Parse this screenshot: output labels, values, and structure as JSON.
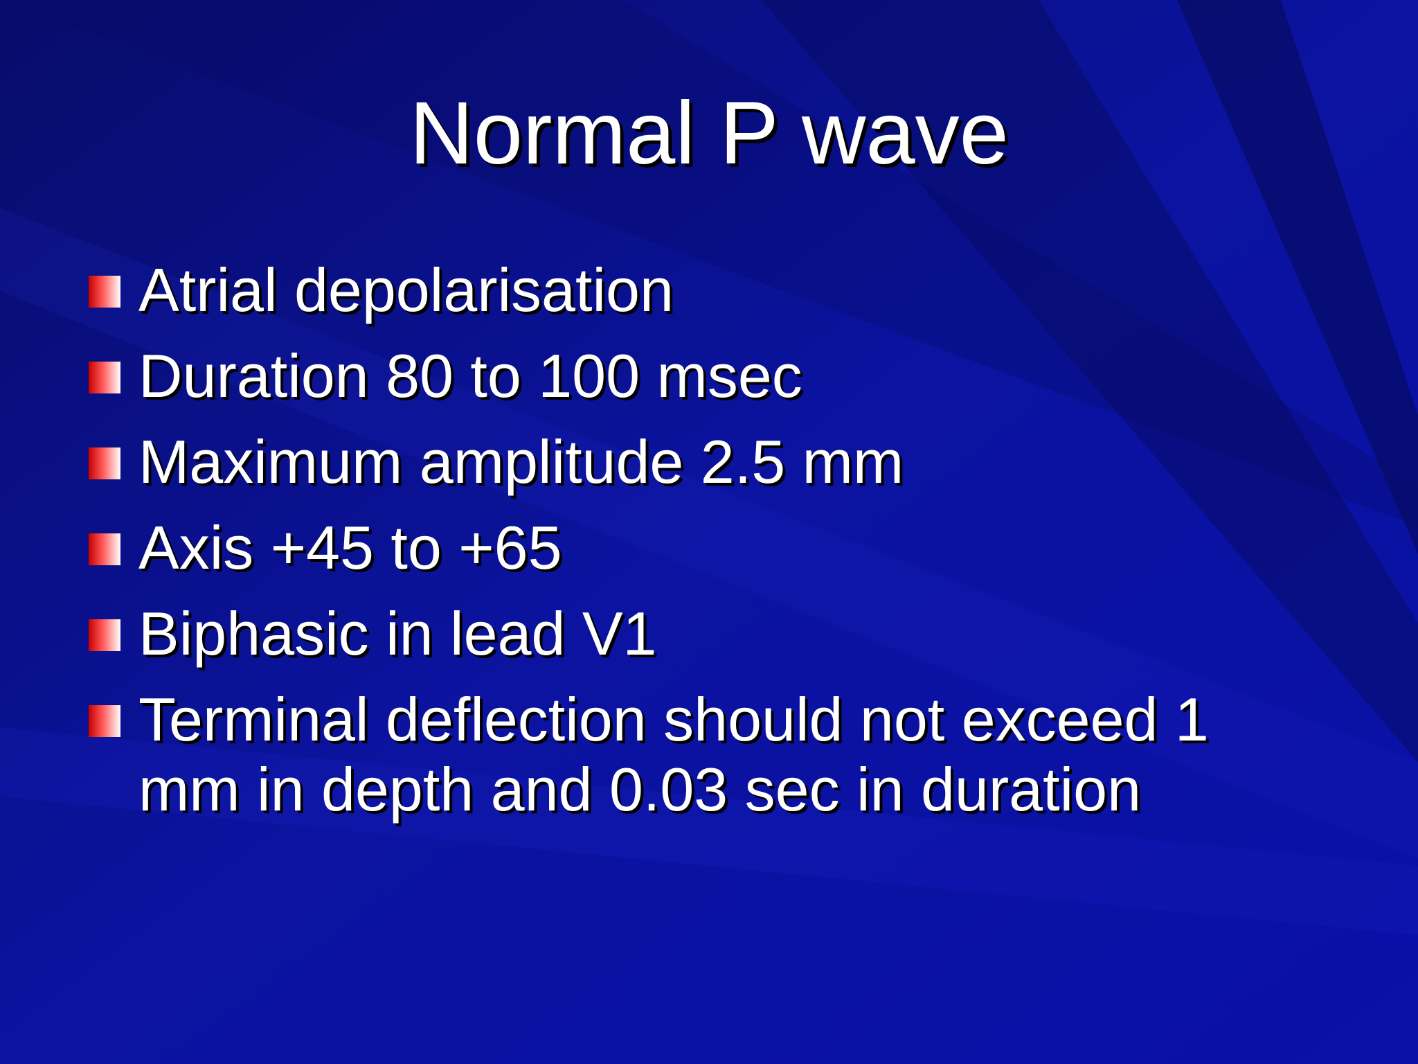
{
  "title": "Normal P wave",
  "bullets": [
    "Atrial depolarisation",
    "Duration 80 to 100 msec",
    "Maximum amplitude 2.5 mm",
    "Axis +45 to +65",
    "Biphasic in lead V1",
    "Terminal deflection should not exceed 1 mm in depth and 0.03 sec in duration"
  ]
}
